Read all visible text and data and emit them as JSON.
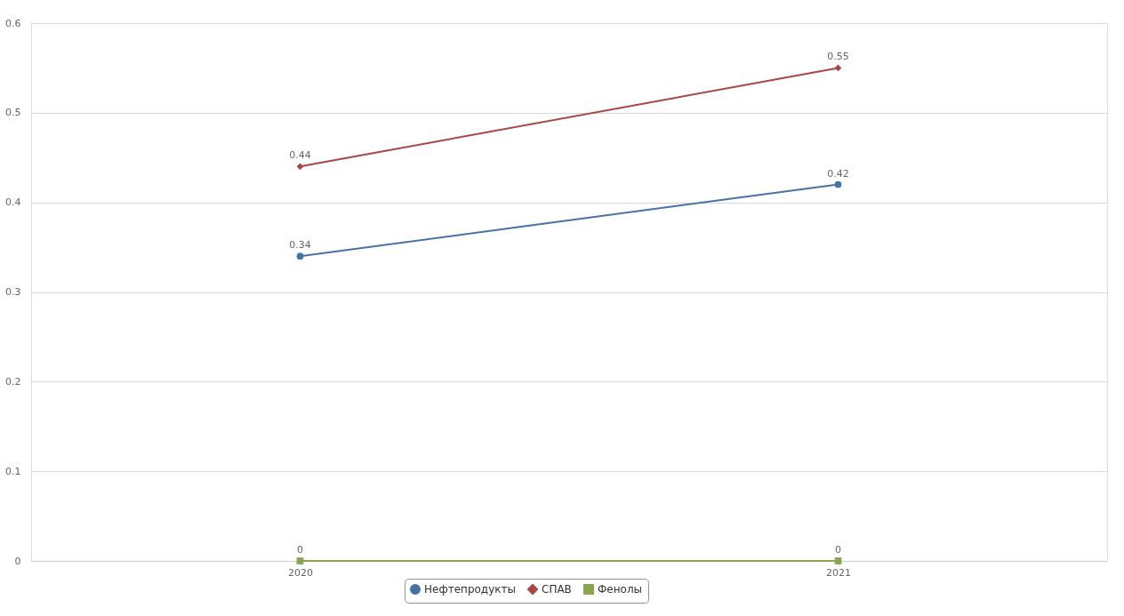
{
  "chart_data": {
    "type": "line",
    "categories": [
      "2020",
      "2021"
    ],
    "series": [
      {
        "name": "Нефтепродукты",
        "color": "#4572a7",
        "marker": "circle",
        "values": [
          0.34,
          0.42
        ]
      },
      {
        "name": "СПАВ",
        "color": "#aa4643",
        "marker": "diamond",
        "values": [
          0.44,
          0.55
        ]
      },
      {
        "name": "Фенолы",
        "color": "#89a54e",
        "marker": "square",
        "values": [
          0,
          0
        ]
      }
    ],
    "ylim": [
      0,
      0.6
    ],
    "yticks": [
      0,
      0.1,
      0.2,
      0.3,
      0.4,
      0.5,
      0.6
    ],
    "grid": "y",
    "legend": "bottom",
    "data_labels": true
  }
}
